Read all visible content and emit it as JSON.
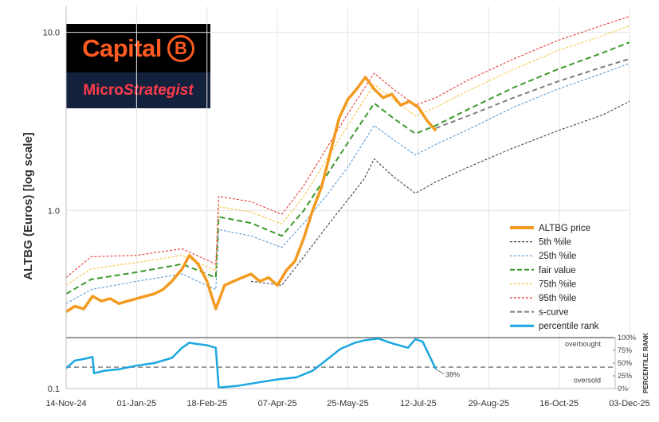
{
  "logo": {
    "brand_word": "Capital",
    "brand_coin": "B",
    "sub_brand_first": "Micro",
    "sub_brand_second": "Strategist"
  },
  "colors": {
    "price": "#f39a1f",
    "p5": "#404040",
    "p25": "#5b9bd5",
    "fair": "#3a9a2a",
    "p75": "#f5c542",
    "p95": "#e83b3b",
    "scurve": "#7f7f7f",
    "rank": "#1aa7e0"
  },
  "chart_data": {
    "type": "line",
    "title": "",
    "ylabel": "ALTBG (Euros) [log scale]",
    "xlabel": "",
    "y_scale": "log",
    "ylim": [
      0.1,
      14
    ],
    "y_ticks": [
      "0.1",
      "1.0",
      "10.0"
    ],
    "x_ticks": [
      "14-Nov-24",
      "01-Jan-25",
      "18-Feb-25",
      "07-Apr-25",
      "25-May-25",
      "12-Jul-25",
      "29-Aug-25",
      "16-Oct-25",
      "03-Dec-25"
    ],
    "x_range": [
      "2024-11-14",
      "2025-12-03"
    ],
    "legend_position": "right",
    "series": [
      {
        "name": "ALTBG price",
        "key": "price",
        "dashed": false,
        "x": [
          "2024-11-14",
          "2024-11-20",
          "2024-11-26",
          "2024-12-02",
          "2024-12-08",
          "2024-12-14",
          "2024-12-20",
          "2024-12-26",
          "2025-01-01",
          "2025-01-07",
          "2025-01-13",
          "2025-01-19",
          "2025-01-25",
          "2025-02-01",
          "2025-02-06",
          "2025-02-12",
          "2025-02-18",
          "2025-02-24",
          "2025-03-02",
          "2025-03-08",
          "2025-03-14",
          "2025-03-20",
          "2025-03-26",
          "2025-04-01",
          "2025-04-07",
          "2025-04-13",
          "2025-04-19",
          "2025-04-25",
          "2025-05-01",
          "2025-05-07",
          "2025-05-13",
          "2025-05-19",
          "2025-05-25",
          "2025-05-31",
          "2025-06-06",
          "2025-06-12",
          "2025-06-18",
          "2025-06-24",
          "2025-06-30",
          "2025-07-06",
          "2025-07-12",
          "2025-07-18",
          "2025-07-24"
        ],
        "y": [
          0.27,
          0.29,
          0.28,
          0.33,
          0.31,
          0.32,
          0.3,
          0.31,
          0.32,
          0.33,
          0.34,
          0.36,
          0.4,
          0.47,
          0.56,
          0.5,
          0.4,
          0.28,
          0.38,
          0.4,
          0.42,
          0.44,
          0.4,
          0.42,
          0.38,
          0.46,
          0.52,
          0.7,
          1.0,
          1.35,
          2.1,
          3.3,
          4.2,
          4.8,
          5.6,
          4.8,
          4.3,
          4.5,
          3.9,
          4.1,
          3.8,
          3.2,
          2.8
        ]
      },
      {
        "name": "5th %ile",
        "key": "p5",
        "dashed": true,
        "x": [
          "2025-03-20",
          "2025-04-10",
          "2025-04-25",
          "2025-05-10",
          "2025-05-25",
          "2025-06-05",
          "2025-06-12",
          "2025-06-25",
          "2025-07-10",
          "2025-07-24",
          "2025-08-15",
          "2025-09-15",
          "2025-10-15",
          "2025-11-15",
          "2025-12-03"
        ],
        "y": [
          0.4,
          0.38,
          0.55,
          0.8,
          1.15,
          1.5,
          1.95,
          1.55,
          1.25,
          1.45,
          1.75,
          2.25,
          2.8,
          3.45,
          4.1
        ]
      },
      {
        "name": "25th %ile",
        "key": "p25",
        "dashed": true,
        "x": [
          "2024-11-14",
          "2024-12-01",
          "2025-01-01",
          "2025-02-01",
          "2025-02-24",
          "2025-02-26",
          "2025-03-20",
          "2025-04-10",
          "2025-04-25",
          "2025-05-10",
          "2025-05-25",
          "2025-06-12",
          "2025-06-25",
          "2025-07-10",
          "2025-07-24",
          "2025-08-15",
          "2025-09-15",
          "2025-10-15",
          "2025-11-15",
          "2025-12-03"
        ],
        "y": [
          0.3,
          0.36,
          0.4,
          0.44,
          0.36,
          0.78,
          0.72,
          0.62,
          0.85,
          1.2,
          1.75,
          3.0,
          2.5,
          2.05,
          2.35,
          2.85,
          3.8,
          4.8,
          5.9,
          6.7
        ]
      },
      {
        "name": "fair value",
        "key": "fair",
        "dashed": true,
        "x": [
          "2024-11-14",
          "2024-12-01",
          "2025-01-01",
          "2025-02-01",
          "2025-02-24",
          "2025-02-26",
          "2025-03-20",
          "2025-04-10",
          "2025-04-25",
          "2025-05-10",
          "2025-05-25",
          "2025-06-12",
          "2025-06-25",
          "2025-07-10",
          "2025-07-24",
          "2025-08-15",
          "2025-09-15",
          "2025-10-15",
          "2025-11-15",
          "2025-12-03"
        ],
        "y": [
          0.34,
          0.41,
          0.45,
          0.5,
          0.42,
          0.92,
          0.85,
          0.72,
          1.0,
          1.55,
          2.4,
          4.0,
          3.3,
          2.7,
          3.0,
          3.7,
          4.9,
          6.2,
          7.7,
          8.8
        ]
      },
      {
        "name": "75th %ile",
        "key": "p75",
        "dashed": true,
        "x": [
          "2024-11-14",
          "2024-12-01",
          "2025-01-01",
          "2025-02-01",
          "2025-02-24",
          "2025-02-26",
          "2025-03-20",
          "2025-04-10",
          "2025-04-25",
          "2025-05-10",
          "2025-05-25",
          "2025-06-12",
          "2025-06-25",
          "2025-07-10",
          "2025-07-24",
          "2025-08-15",
          "2025-09-15",
          "2025-10-15",
          "2025-11-15",
          "2025-12-03"
        ],
        "y": [
          0.38,
          0.47,
          0.51,
          0.56,
          0.46,
          1.05,
          0.98,
          0.84,
          1.2,
          1.9,
          3.0,
          5.1,
          4.2,
          3.4,
          3.8,
          4.7,
          6.2,
          7.9,
          9.6,
          10.9
        ]
      },
      {
        "name": "95th %ile",
        "key": "p95",
        "dashed": true,
        "x": [
          "2024-11-14",
          "2024-12-01",
          "2025-01-01",
          "2025-02-01",
          "2025-02-24",
          "2025-02-26",
          "2025-03-20",
          "2025-04-10",
          "2025-04-25",
          "2025-05-10",
          "2025-05-25",
          "2025-06-12",
          "2025-06-25",
          "2025-07-10",
          "2025-07-24",
          "2025-08-15",
          "2025-09-15",
          "2025-10-15",
          "2025-11-15",
          "2025-12-03"
        ],
        "y": [
          0.42,
          0.55,
          0.56,
          0.61,
          0.5,
          1.2,
          1.12,
          0.95,
          1.38,
          2.2,
          3.5,
          5.9,
          4.8,
          3.9,
          4.3,
          5.4,
          7.1,
          9.0,
          11.0,
          12.3
        ]
      },
      {
        "name": "s-curve",
        "key": "scurve",
        "dashed": true,
        "x": [
          "2025-07-24",
          "2025-08-15",
          "2025-09-15",
          "2025-10-15",
          "2025-11-15",
          "2025-12-03"
        ],
        "y": [
          2.9,
          3.4,
          4.3,
          5.3,
          6.4,
          7.1
        ]
      }
    ],
    "rank_panel": {
      "label": "PERCENTILE RANK",
      "ticks": [
        "0%",
        "25%",
        "50%",
        "75%",
        "100%"
      ],
      "overbought_label": "overbought",
      "oversold_label": "oversold",
      "reference_level": 0.42,
      "latest_label": "38%",
      "latest_value": 0.38,
      "series": {
        "name": "percentile rank",
        "key": "rank",
        "x": [
          "2024-11-14",
          "2024-11-20",
          "2024-11-26",
          "2024-12-02",
          "2024-12-03",
          "2024-12-10",
          "2024-12-20",
          "2025-01-01",
          "2025-01-13",
          "2025-01-25",
          "2025-02-01",
          "2025-02-06",
          "2025-02-10",
          "2025-02-18",
          "2025-02-24",
          "2025-02-26",
          "2025-03-10",
          "2025-03-25",
          "2025-04-07",
          "2025-04-20",
          "2025-05-01",
          "2025-05-10",
          "2025-05-20",
          "2025-05-30",
          "2025-06-06",
          "2025-06-15",
          "2025-06-25",
          "2025-07-05",
          "2025-07-10",
          "2025-07-15",
          "2025-07-24"
        ],
        "y": [
          0.4,
          0.55,
          0.58,
          0.62,
          0.3,
          0.35,
          0.38,
          0.45,
          0.5,
          0.6,
          0.8,
          0.9,
          0.88,
          0.85,
          0.8,
          0.02,
          0.05,
          0.12,
          0.18,
          0.22,
          0.35,
          0.55,
          0.78,
          0.9,
          0.95,
          0.98,
          0.88,
          0.8,
          0.97,
          0.92,
          0.38
        ]
      }
    }
  }
}
